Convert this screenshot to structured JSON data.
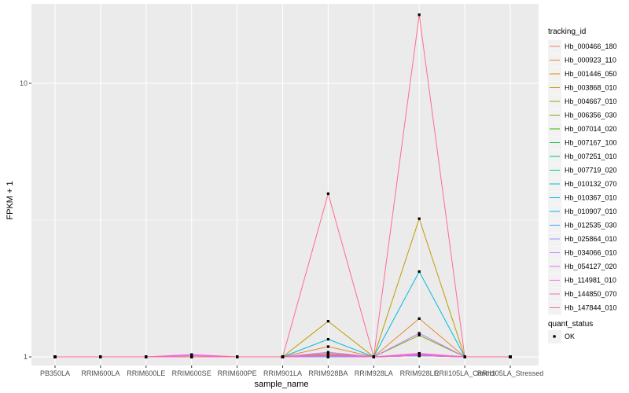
{
  "chart_data": {
    "type": "line",
    "xlabel": "sample_name",
    "ylabel": "FPKM + 1",
    "y_scale": "log10",
    "ylim": [
      0.93,
      19.5
    ],
    "y_ticks": [
      {
        "value": 1,
        "label": "1"
      },
      {
        "value": 10,
        "label": "10"
      }
    ],
    "grid": true,
    "categories": [
      "PB350LA",
      "RRIM600LA",
      "RRIM600LE",
      "RRIM600SE",
      "RRIM600PE",
      "RRIM901LA",
      "RRIM928BA",
      "RRIM928LA",
      "RRIM928LE",
      "RRII105LA_Control",
      "RRII105LA_Stressed"
    ],
    "legend": {
      "title": "tracking_id",
      "position": "right"
    },
    "point_legend": {
      "title": "quant_status",
      "entries": [
        "OK"
      ]
    },
    "series": [
      {
        "name": "Hb_000466_180",
        "color": "#F8766D",
        "values": [
          1,
          1,
          1,
          1,
          1,
          1,
          1.02,
          1,
          1.03,
          1,
          1
        ]
      },
      {
        "name": "Hb_000923_110",
        "color": "#EA8331",
        "values": [
          1,
          1,
          1,
          1,
          1,
          1,
          1.09,
          1,
          1.38,
          1,
          1
        ]
      },
      {
        "name": "Hb_001446_050",
        "color": "#D89000",
        "values": [
          1,
          1,
          1,
          1,
          1,
          1,
          1.02,
          1,
          1.02,
          1,
          1
        ]
      },
      {
        "name": "Hb_003868_010",
        "color": "#C09B00",
        "values": [
          1,
          1,
          1,
          1,
          1,
          1,
          1.35,
          1,
          3.2,
          1,
          1
        ]
      },
      {
        "name": "Hb_004667_010",
        "color": "#A3A500",
        "values": [
          1,
          1,
          1,
          1.01,
          1,
          1,
          1.03,
          1,
          1.02,
          1,
          1
        ]
      },
      {
        "name": "Hb_006356_030",
        "color": "#7CAE00",
        "values": [
          1,
          1,
          1,
          1,
          1,
          1,
          1.01,
          1,
          1.2,
          1,
          1
        ]
      },
      {
        "name": "Hb_007014_020",
        "color": "#39B600",
        "values": [
          1,
          1,
          1,
          1,
          1,
          1,
          1,
          1,
          1.01,
          1,
          1
        ]
      },
      {
        "name": "Hb_007167_100",
        "color": "#00BB4E",
        "values": [
          1,
          1,
          1,
          1,
          1,
          1,
          1.01,
          1,
          1.02,
          1,
          1
        ]
      },
      {
        "name": "Hb_007251_010",
        "color": "#00BF7D",
        "values": [
          1,
          1,
          1,
          1,
          1,
          1,
          1,
          1,
          1.01,
          1,
          1
        ]
      },
      {
        "name": "Hb_007719_020",
        "color": "#00C1A3",
        "values": [
          1,
          1,
          1,
          1,
          1,
          1,
          1.01,
          1,
          1.02,
          1,
          1
        ]
      },
      {
        "name": "Hb_010132_070",
        "color": "#00BFC4",
        "values": [
          1,
          1,
          1,
          1,
          1,
          1,
          1,
          1,
          1.01,
          1,
          1
        ]
      },
      {
        "name": "Hb_010367_010",
        "color": "#00BAE0",
        "values": [
          1,
          1,
          1,
          1,
          1,
          1,
          1.16,
          1,
          2.05,
          1,
          1
        ]
      },
      {
        "name": "Hb_010907_010",
        "color": "#00B0F6",
        "values": [
          1,
          1,
          1,
          1,
          1,
          1,
          1.01,
          1,
          1.02,
          1,
          1
        ]
      },
      {
        "name": "Hb_012535_030",
        "color": "#35A2FF",
        "values": [
          1,
          1,
          1,
          1,
          1,
          1,
          1,
          1,
          1.01,
          1,
          1
        ]
      },
      {
        "name": "Hb_025864_010",
        "color": "#9590FF",
        "values": [
          1,
          1,
          1,
          1,
          1,
          1,
          1,
          1,
          1.02,
          1,
          1
        ]
      },
      {
        "name": "Hb_034066_010",
        "color": "#C77CFF",
        "values": [
          1,
          1,
          1,
          1,
          1,
          1,
          1.04,
          1,
          1.22,
          1,
          1
        ]
      },
      {
        "name": "Hb_054127_020",
        "color": "#E76BF3",
        "values": [
          1,
          1,
          1,
          1.01,
          1,
          1,
          1.01,
          1,
          1.02,
          1,
          1
        ]
      },
      {
        "name": "Hb_114981_010",
        "color": "#FA62DB",
        "values": [
          1,
          1,
          1,
          1.02,
          1,
          1,
          1.02,
          1,
          1.03,
          1,
          1
        ]
      },
      {
        "name": "Hb_144850_070",
        "color": "#FF62BC",
        "values": [
          1,
          1,
          1,
          1,
          1,
          1,
          1.01,
          1,
          1.01,
          1,
          1
        ]
      },
      {
        "name": "Hb_147844_010",
        "color": "#FF6C91",
        "values": [
          1,
          1,
          1,
          1,
          1,
          1,
          3.95,
          1,
          17.8,
          1,
          1
        ]
      }
    ]
  }
}
